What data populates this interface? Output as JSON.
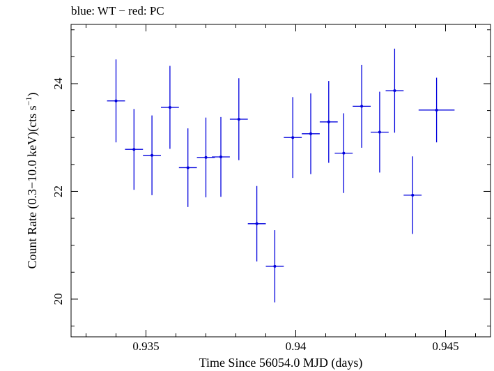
{
  "chart_data": {
    "type": "scatter",
    "title": "blue: WT − red: PC",
    "xlabel": "Time Since 56054.0 MJD (days)",
    "ylabel_parts": {
      "main": "Count Rate (0.3−10.0 keV)(cts s",
      "sup": "−1",
      "end": ")"
    },
    "xlim": [
      0.9325,
      0.9465
    ],
    "ylim": [
      19.3,
      25.1
    ],
    "x_major_ticks": [
      0.935,
      0.94,
      0.945
    ],
    "x_tick_labels": [
      "0.935",
      "0.94",
      "0.945"
    ],
    "x_minor_step": 0.001,
    "y_major_ticks": [
      20,
      22,
      24
    ],
    "y_tick_labels": [
      "20",
      "22",
      "24"
    ],
    "y_minor_step": 0.5,
    "grid": false,
    "series": [
      {
        "color": "#0000dd",
        "points": [
          {
            "x": 0.934,
            "y": 23.68,
            "xerr": 0.0003,
            "yerr": 0.77
          },
          {
            "x": 0.9346,
            "y": 22.78,
            "xerr": 0.0003,
            "yerr": 0.75
          },
          {
            "x": 0.9352,
            "y": 22.67,
            "xerr": 0.0003,
            "yerr": 0.74
          },
          {
            "x": 0.9358,
            "y": 23.56,
            "xerr": 0.0003,
            "yerr": 0.77
          },
          {
            "x": 0.9364,
            "y": 22.44,
            "xerr": 0.0003,
            "yerr": 0.73
          },
          {
            "x": 0.937,
            "y": 22.63,
            "xerr": 0.0003,
            "yerr": 0.74
          },
          {
            "x": 0.9375,
            "y": 22.64,
            "xerr": 0.0003,
            "yerr": 0.74
          },
          {
            "x": 0.9381,
            "y": 23.34,
            "xerr": 0.0003,
            "yerr": 0.76
          },
          {
            "x": 0.9387,
            "y": 21.4,
            "xerr": 0.0003,
            "yerr": 0.7
          },
          {
            "x": 0.9393,
            "y": 20.61,
            "xerr": 0.0003,
            "yerr": 0.67
          },
          {
            "x": 0.9399,
            "y": 23.0,
            "xerr": 0.0003,
            "yerr": 0.75
          },
          {
            "x": 0.9405,
            "y": 23.07,
            "xerr": 0.0003,
            "yerr": 0.75
          },
          {
            "x": 0.9411,
            "y": 23.29,
            "xerr": 0.0003,
            "yerr": 0.76
          },
          {
            "x": 0.9416,
            "y": 22.71,
            "xerr": 0.0003,
            "yerr": 0.74
          },
          {
            "x": 0.9422,
            "y": 23.58,
            "xerr": 0.0003,
            "yerr": 0.77
          },
          {
            "x": 0.9428,
            "y": 23.1,
            "xerr": 0.0003,
            "yerr": 0.75
          },
          {
            "x": 0.9433,
            "y": 23.87,
            "xerr": 0.0003,
            "yerr": 0.78
          },
          {
            "x": 0.9439,
            "y": 21.93,
            "xerr": 0.0003,
            "yerr": 0.72
          },
          {
            "x": 0.9447,
            "y": 23.51,
            "xerr": 0.0006,
            "yerr": 0.6
          }
        ]
      }
    ]
  }
}
